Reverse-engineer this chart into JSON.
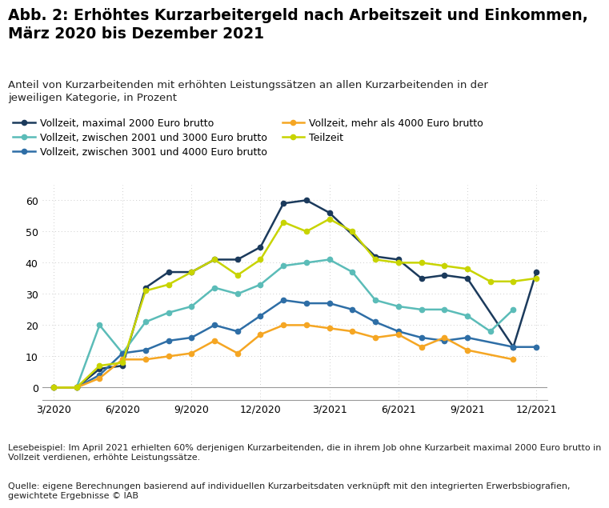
{
  "title": "Abb. 2: Erhöhtes Kurzarbeitergeld nach Arbeitszeit und Einkommen,\nMärz 2020 bis Dezember 2021",
  "subtitle": "Anteil von Kurzarbeitenden mit erhöhten Leistungssätzen an allen Kurzarbeitenden in der\njeweiligen Kategorie, in Prozent",
  "lesebeispiel": "Lesebeispiel: Im April 2021 erhielten 60% derjenigen Kurzarbeitenden, die in ihrem Job ohne Kurzarbeit maximal 2000 Euro brutto in\nVollzeit verdienen, erhöhte Leistungssätze.",
  "quelle": "Quelle: eigene Berechnungen basierend auf individuellen Kurzarbeitsdaten verknüpft mit den integrierten Erwerbsbiografien,\ngewichtete Ergebnisse © IAB",
  "series": [
    {
      "label": "Vollzeit, maximal 2000 Euro brutto",
      "color": "#1b3a5c",
      "marker": "o",
      "linewidth": 1.8,
      "markersize": 4.5
    },
    {
      "label": "Vollzeit, zwischen 2001 und 3000 Euro brutto",
      "color": "#5bbcb8",
      "marker": "o",
      "linewidth": 1.8,
      "markersize": 4.5
    },
    {
      "label": "Vollzeit, zwischen 3001 und 4000 Euro brutto",
      "color": "#2e6ea6",
      "marker": "o",
      "linewidth": 1.8,
      "markersize": 4.5
    },
    {
      "label": "Vollzeit, mehr als 4000 Euro brutto",
      "color": "#f5a623",
      "marker": "o",
      "linewidth": 1.8,
      "markersize": 4.5
    },
    {
      "label": "Teilzeit",
      "color": "#c8d400",
      "marker": "o",
      "linewidth": 1.8,
      "markersize": 4.5
    }
  ],
  "series_data": [
    [
      [
        0,
        0
      ],
      [
        1,
        0
      ],
      [
        2,
        6
      ],
      [
        3,
        7
      ],
      [
        4,
        32
      ],
      [
        5,
        37
      ],
      [
        6,
        37
      ],
      [
        7,
        41
      ],
      [
        8,
        41
      ],
      [
        9,
        45
      ],
      [
        10,
        59
      ],
      [
        11,
        60
      ],
      [
        12,
        56
      ],
      [
        14,
        42
      ],
      [
        15,
        41
      ],
      [
        16,
        35
      ],
      [
        17,
        36
      ],
      [
        18,
        35
      ],
      [
        20,
        13
      ],
      [
        21,
        37
      ]
    ],
    [
      [
        0,
        0
      ],
      [
        1,
        0
      ],
      [
        2,
        20
      ],
      [
        3,
        11
      ],
      [
        4,
        21
      ],
      [
        5,
        24
      ],
      [
        6,
        26
      ],
      [
        7,
        32
      ],
      [
        8,
        30
      ],
      [
        9,
        33
      ],
      [
        10,
        39
      ],
      [
        11,
        40
      ],
      [
        12,
        41
      ],
      [
        13,
        37
      ],
      [
        14,
        28
      ],
      [
        15,
        26
      ],
      [
        16,
        25
      ],
      [
        17,
        25
      ],
      [
        18,
        23
      ],
      [
        19,
        18
      ],
      [
        20,
        25
      ]
    ],
    [
      [
        0,
        0
      ],
      [
        1,
        0
      ],
      [
        2,
        4
      ],
      [
        3,
        11
      ],
      [
        4,
        12
      ],
      [
        5,
        15
      ],
      [
        6,
        16
      ],
      [
        7,
        20
      ],
      [
        8,
        18
      ],
      [
        9,
        23
      ],
      [
        10,
        28
      ],
      [
        11,
        27
      ],
      [
        12,
        27
      ],
      [
        13,
        25
      ],
      [
        14,
        21
      ],
      [
        15,
        18
      ],
      [
        16,
        16
      ],
      [
        17,
        15
      ],
      [
        18,
        16
      ],
      [
        20,
        13
      ],
      [
        21,
        13
      ]
    ],
    [
      [
        0,
        0
      ],
      [
        1,
        0
      ],
      [
        2,
        3
      ],
      [
        3,
        9
      ],
      [
        4,
        9
      ],
      [
        5,
        10
      ],
      [
        6,
        11
      ],
      [
        7,
        15
      ],
      [
        8,
        11
      ],
      [
        9,
        17
      ],
      [
        10,
        20
      ],
      [
        11,
        20
      ],
      [
        12,
        19
      ],
      [
        13,
        18
      ],
      [
        14,
        16
      ],
      [
        15,
        17
      ],
      [
        16,
        13
      ],
      [
        17,
        16
      ],
      [
        18,
        12
      ],
      [
        20,
        9
      ]
    ],
    [
      [
        0,
        0
      ],
      [
        1,
        0
      ],
      [
        2,
        7
      ],
      [
        3,
        8
      ],
      [
        4,
        31
      ],
      [
        5,
        33
      ],
      [
        6,
        37
      ],
      [
        7,
        41
      ],
      [
        8,
        36
      ],
      [
        9,
        41
      ],
      [
        10,
        53
      ],
      [
        11,
        50
      ],
      [
        12,
        54
      ],
      [
        13,
        50
      ],
      [
        14,
        41
      ],
      [
        15,
        40
      ],
      [
        16,
        40
      ],
      [
        17,
        39
      ],
      [
        18,
        38
      ],
      [
        19,
        34
      ],
      [
        20,
        34
      ],
      [
        21,
        35
      ]
    ]
  ],
  "x_tick_positions": [
    0,
    3,
    6,
    9,
    12,
    15,
    18,
    21
  ],
  "x_tick_labels": [
    "3/2020",
    "6/2020",
    "9/2020",
    "12/2020",
    "3/2021",
    "6/2021",
    "9/2021",
    "12/2021"
  ],
  "ylim": [
    -4,
    65
  ],
  "yticks": [
    0,
    10,
    20,
    30,
    40,
    50,
    60
  ],
  "xlim": [
    -0.5,
    21.5
  ],
  "background_color": "#ffffff",
  "grid_color": "#cccccc",
  "axis_color": "#999999",
  "title_fontsize": 13.5,
  "subtitle_fontsize": 9.5,
  "legend_fontsize": 9,
  "tick_fontsize": 9,
  "footnote_fontsize": 8.0
}
